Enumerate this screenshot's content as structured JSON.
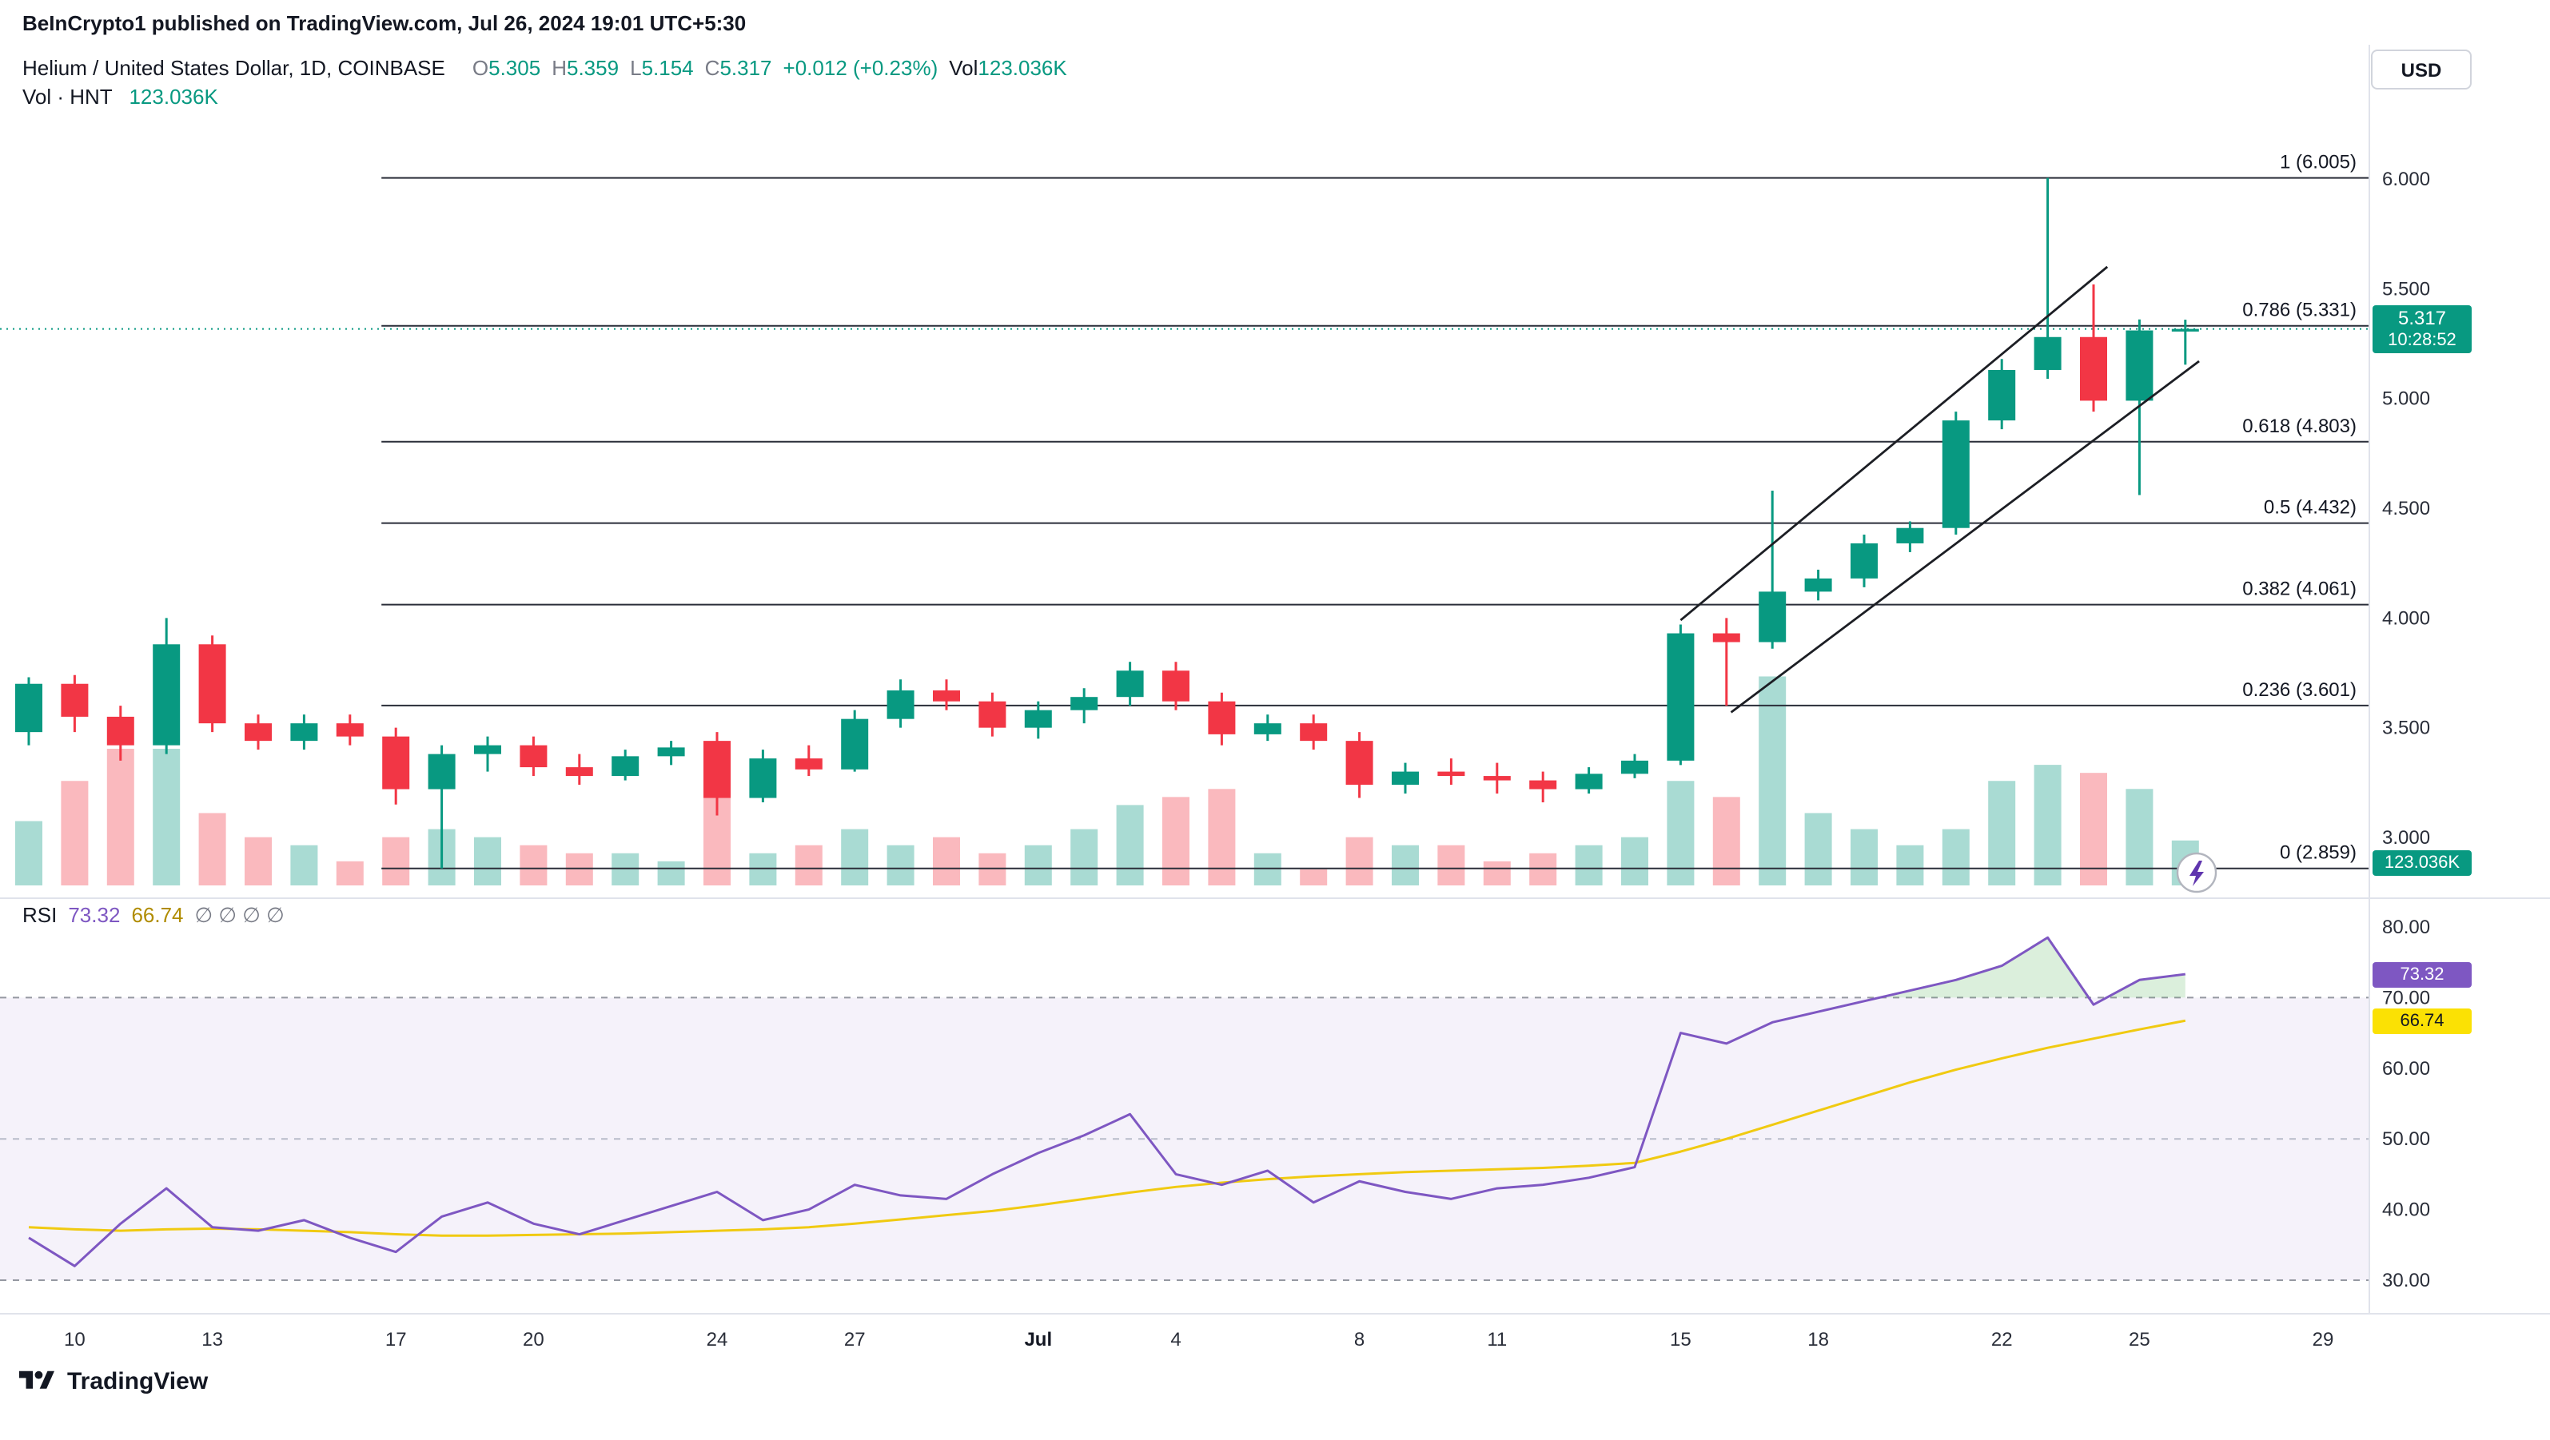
{
  "publisher_bar": {
    "text": "BeInCrypto1 published on TradingView.com, Jul 26, 2024 19:01 UTC+5:30"
  },
  "header": {
    "symbol_title": "Helium / United States Dollar, 1D, COINBASE",
    "ohlc": {
      "o_label": "O",
      "o": "5.305",
      "h_label": "H",
      "h": "5.359",
      "l_label": "L",
      "l": "5.154",
      "c_label": "C",
      "c": "5.317",
      "change": "+0.012 (+0.23%)",
      "vol_label": "Vol",
      "vol": "123.036K"
    },
    "currency_button": "USD",
    "vol_row": {
      "label": "Vol · HNT",
      "value": "123.036K"
    }
  },
  "rsi_header": {
    "title": "RSI",
    "value": "73.32",
    "ma_value": "66.74",
    "hidden_inputs": "∅ ∅ ∅ ∅"
  },
  "badges": {
    "price": "5.317",
    "countdown": "10:28:52",
    "volume": "123.036K",
    "rsi": "73.32",
    "rsi_ma": "66.74"
  },
  "footer": {
    "brand": "TradingView"
  },
  "colors": {
    "green": "#089981",
    "red": "#f23645",
    "vol_up": "rgba(8,153,129,0.35)",
    "vol_down": "rgba(242,54,69,0.35)",
    "purple": "#7e57c2",
    "yellow": "#f0ca11",
    "yellow-badge": "#fbe104",
    "text": "#131722",
    "label-gray": "#787b86",
    "sep": "#e0e3eb",
    "fib_line": "#2a2e39",
    "channel_line": "#1c1e24",
    "rsi_band": "rgba(126,87,194,0.08)",
    "overbought_fill": "rgba(76,175,80,0.20)",
    "rsi_level": "#9598a1",
    "rsi_mid_level": "#b8bcc9",
    "lightning": "#5f35ae"
  },
  "chart_data": {
    "type": "candlestick",
    "title": "Helium / United States Dollar, 1D, COINBASE",
    "symbol": "HNT/USD",
    "interval": "1D",
    "exchange": "COINBASE",
    "current_price": 5.317,
    "price_range_visible": [
      2.859,
      6.1
    ],
    "price_axis_values": [
      6.0,
      5.5,
      5.0,
      4.5,
      4.0,
      3.5,
      3.0
    ],
    "price_axis_ticks": [
      "6.000",
      "5.500",
      "5.000",
      "4.500",
      "4.000",
      "3.500",
      "3.000"
    ],
    "time_ticks": [
      {
        "label": "10",
        "i": 1
      },
      {
        "label": "13",
        "i": 4
      },
      {
        "label": "17",
        "i": 8
      },
      {
        "label": "20",
        "i": 11
      },
      {
        "label": "24",
        "i": 15
      },
      {
        "label": "27",
        "i": 18
      },
      {
        "label": "Jul",
        "i": 22,
        "bold": true
      },
      {
        "label": "4",
        "i": 25
      },
      {
        "label": "8",
        "i": 29
      },
      {
        "label": "11",
        "i": 32
      },
      {
        "label": "15",
        "i": 36
      },
      {
        "label": "18",
        "i": 39
      },
      {
        "label": "22",
        "i": 43
      },
      {
        "label": "25",
        "i": 46
      },
      {
        "label": "29",
        "i": 50
      }
    ],
    "fib_levels": [
      {
        "label": "1 (6.005)",
        "value": 6.005
      },
      {
        "label": "0.786 (5.331)",
        "value": 5.331
      },
      {
        "label": "0.618 (4.803)",
        "value": 4.803
      },
      {
        "label": "0.5 (4.432)",
        "value": 4.432
      },
      {
        "label": "0.382 (4.061)",
        "value": 4.061
      },
      {
        "label": "0.236 (3.601)",
        "value": 3.601
      },
      {
        "label": "0 (2.859)",
        "value": 2.859
      }
    ],
    "fib_start_index": 8,
    "channel": {
      "upper": {
        "x1": 36.0,
        "p1": 3.99,
        "x2": 45.3,
        "p2": 5.6
      },
      "lower": {
        "x1": 37.1,
        "p1": 3.57,
        "x2": 47.3,
        "p2": 5.17
      }
    },
    "volume_unit": "K",
    "candles_format": [
      "open",
      "high",
      "low",
      "close",
      "volume_K"
    ],
    "candles": [
      [
        3.48,
        3.73,
        3.42,
        3.7,
        176
      ],
      [
        3.7,
        3.74,
        3.48,
        3.55,
        286
      ],
      [
        3.55,
        3.6,
        3.35,
        3.42,
        374
      ],
      [
        3.42,
        4.0,
        3.38,
        3.88,
        374
      ],
      [
        3.88,
        3.92,
        3.48,
        3.52,
        198
      ],
      [
        3.52,
        3.56,
        3.4,
        3.44,
        132
      ],
      [
        3.44,
        3.56,
        3.4,
        3.52,
        110
      ],
      [
        3.52,
        3.56,
        3.42,
        3.46,
        66
      ],
      [
        3.46,
        3.5,
        3.15,
        3.22,
        132
      ],
      [
        3.22,
        3.42,
        2.859,
        3.38,
        154
      ],
      [
        3.38,
        3.46,
        3.3,
        3.42,
        132
      ],
      [
        3.42,
        3.46,
        3.28,
        3.32,
        110
      ],
      [
        3.32,
        3.38,
        3.24,
        3.28,
        88
      ],
      [
        3.28,
        3.4,
        3.26,
        3.37,
        88
      ],
      [
        3.37,
        3.44,
        3.33,
        3.41,
        66
      ],
      [
        3.44,
        3.48,
        3.1,
        3.18,
        242
      ],
      [
        3.18,
        3.4,
        3.16,
        3.36,
        88
      ],
      [
        3.36,
        3.42,
        3.28,
        3.31,
        110
      ],
      [
        3.31,
        3.58,
        3.3,
        3.54,
        154
      ],
      [
        3.54,
        3.72,
        3.5,
        3.67,
        110
      ],
      [
        3.67,
        3.72,
        3.58,
        3.62,
        132
      ],
      [
        3.62,
        3.66,
        3.46,
        3.5,
        88
      ],
      [
        3.5,
        3.62,
        3.45,
        3.58,
        110
      ],
      [
        3.58,
        3.68,
        3.52,
        3.64,
        154
      ],
      [
        3.64,
        3.8,
        3.6,
        3.76,
        220
      ],
      [
        3.76,
        3.8,
        3.58,
        3.62,
        242
      ],
      [
        3.62,
        3.66,
        3.42,
        3.47,
        264
      ],
      [
        3.47,
        3.56,
        3.44,
        3.52,
        88
      ],
      [
        3.52,
        3.56,
        3.4,
        3.44,
        44
      ],
      [
        3.44,
        3.48,
        3.18,
        3.24,
        132
      ],
      [
        3.24,
        3.34,
        3.2,
        3.3,
        110
      ],
      [
        3.3,
        3.36,
        3.24,
        3.28,
        110
      ],
      [
        3.28,
        3.34,
        3.2,
        3.26,
        66
      ],
      [
        3.26,
        3.3,
        3.16,
        3.22,
        88
      ],
      [
        3.22,
        3.32,
        3.2,
        3.29,
        110
      ],
      [
        3.29,
        3.38,
        3.27,
        3.35,
        132
      ],
      [
        3.35,
        3.97,
        3.33,
        3.93,
        286
      ],
      [
        3.93,
        4.0,
        3.6,
        3.89,
        242
      ],
      [
        3.89,
        4.58,
        3.86,
        4.12,
        572
      ],
      [
        4.12,
        4.22,
        4.08,
        4.18,
        198
      ],
      [
        4.18,
        4.38,
        4.14,
        4.34,
        154
      ],
      [
        4.34,
        4.44,
        4.3,
        4.41,
        110
      ],
      [
        4.41,
        4.94,
        4.38,
        4.9,
        154
      ],
      [
        4.9,
        5.18,
        4.86,
        5.13,
        286
      ],
      [
        5.13,
        6.005,
        5.09,
        5.28,
        330
      ],
      [
        5.28,
        5.52,
        4.94,
        4.99,
        308
      ],
      [
        4.99,
        5.36,
        4.56,
        5.31,
        264
      ],
      [
        5.305,
        5.359,
        5.154,
        5.317,
        123.036
      ]
    ],
    "rsi_axis_values": [
      80,
      70,
      60,
      50,
      40,
      30
    ],
    "rsi_axis_ticks": [
      "80.00",
      "70.00",
      "60.00",
      "50.00",
      "40.00",
      "30.00"
    ],
    "rsi_dashed_levels": [
      70,
      50,
      30
    ],
    "rsi_band": [
      30,
      70
    ],
    "rsi": [
      36,
      32,
      38,
      43,
      37.5,
      37,
      38.5,
      36,
      34,
      39,
      41,
      38,
      36.5,
      38.5,
      40.5,
      42.5,
      38.5,
      40,
      43.5,
      42,
      41.5,
      45,
      48,
      50.5,
      53.5,
      45,
      43.5,
      45.5,
      41,
      44,
      42.5,
      41.5,
      43,
      43.5,
      44.5,
      46,
      65,
      63.5,
      66.5,
      68,
      69.5,
      71,
      72.5,
      74.5,
      78.5,
      69,
      72.5,
      73.32
    ],
    "rsi_ma": [
      37.5,
      37.2,
      37.0,
      37.2,
      37.3,
      37.2,
      37.0,
      36.8,
      36.5,
      36.3,
      36.3,
      36.4,
      36.5,
      36.6,
      36.8,
      37.0,
      37.2,
      37.5,
      38.0,
      38.6,
      39.2,
      39.8,
      40.6,
      41.5,
      42.4,
      43.2,
      43.8,
      44.3,
      44.7,
      45.0,
      45.3,
      45.5,
      45.7,
      45.9,
      46.2,
      46.6,
      48.2,
      50.0,
      52.0,
      54.0,
      56.0,
      58.0,
      59.8,
      61.4,
      62.9,
      64.2,
      65.5,
      66.74
    ]
  }
}
